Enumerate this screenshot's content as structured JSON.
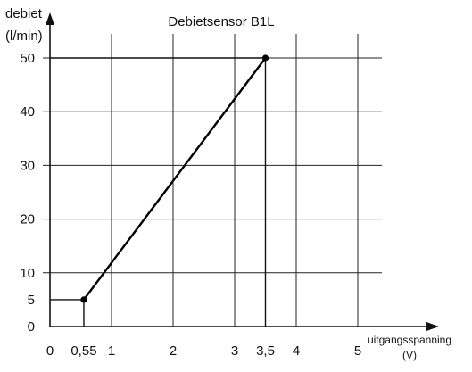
{
  "chart_data": {
    "type": "line",
    "title": "Debietsensor B1L",
    "ylabel_line1": "debiet",
    "ylabel_line2": "(l/min)",
    "xlabel_line1": "uitgangsspanning",
    "xlabel_line2": "(V)",
    "xlim": [
      0,
      5.4
    ],
    "ylim": [
      0,
      54
    ],
    "x_gridlines": [
      1,
      2,
      3,
      4,
      5
    ],
    "y_gridlines": [
      10,
      20,
      30,
      40,
      50
    ],
    "x_ticks": [
      {
        "value": 0,
        "label": "0"
      },
      {
        "value": 0.55,
        "label": "0,55"
      },
      {
        "value": 1,
        "label": "1"
      },
      {
        "value": 2,
        "label": "2"
      },
      {
        "value": 3,
        "label": "3"
      },
      {
        "value": 3.5,
        "label": "3,5"
      },
      {
        "value": 4,
        "label": "4"
      },
      {
        "value": 5,
        "label": "5"
      }
    ],
    "y_ticks": [
      {
        "value": 0,
        "label": "0"
      },
      {
        "value": 5,
        "label": "5"
      },
      {
        "value": 10,
        "label": "10"
      },
      {
        "value": 20,
        "label": "20"
      },
      {
        "value": 30,
        "label": "30"
      },
      {
        "value": 40,
        "label": "40"
      },
      {
        "value": 50,
        "label": "50"
      }
    ],
    "series": [
      {
        "points": [
          {
            "x": 0.55,
            "y": 5
          },
          {
            "x": 3.5,
            "y": 50
          }
        ]
      }
    ],
    "guides": [
      {
        "from": {
          "x": 0,
          "y": 5
        },
        "to": {
          "x": 0.55,
          "y": 5
        }
      },
      {
        "from": {
          "x": 0.55,
          "y": 5
        },
        "to": {
          "x": 0.55,
          "y": 0
        }
      },
      {
        "from": {
          "x": 0,
          "y": 50
        },
        "to": {
          "x": 3.5,
          "y": 50
        }
      },
      {
        "from": {
          "x": 3.5,
          "y": 50
        },
        "to": {
          "x": 3.5,
          "y": 0
        }
      }
    ],
    "grid": true,
    "colors": {
      "line": "#000000",
      "grid": "#222222"
    }
  }
}
